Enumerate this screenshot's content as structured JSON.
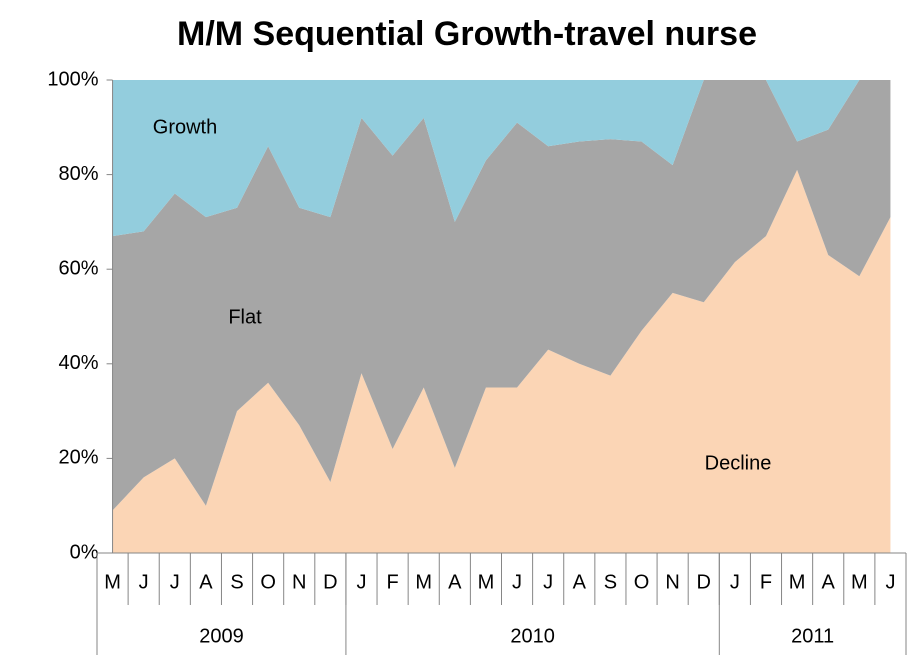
{
  "chart_data": {
    "type": "stacked_area",
    "title": "M/M Sequential Growth-travel nurse",
    "categories": [
      "M",
      "J",
      "J",
      "A",
      "S",
      "O",
      "N",
      "D",
      "J",
      "F",
      "M",
      "A",
      "M",
      "J",
      "J",
      "A",
      "S",
      "O",
      "N",
      "D",
      "J",
      "F",
      "M",
      "A",
      "M",
      "J"
    ],
    "year_groups": [
      {
        "label": "2009",
        "span": 8
      },
      {
        "label": "2010",
        "span": 12
      },
      {
        "label": "2011",
        "span": 6
      }
    ],
    "series": [
      {
        "name": "Growth",
        "color": "#fbd5b5",
        "values": [
          9,
          16,
          20,
          10,
          30,
          36,
          27,
          15,
          38,
          22,
          35,
          18,
          35,
          35,
          43,
          40,
          37.5,
          47,
          55,
          53,
          61.5,
          67,
          81,
          63,
          58.5,
          71
        ]
      },
      {
        "name": "Flat",
        "color": "#a6a6a6",
        "values": [
          58,
          52,
          56,
          61,
          43,
          50,
          46,
          56,
          54,
          62,
          57,
          52,
          48,
          56,
          43,
          47,
          50,
          40,
          27,
          47,
          38.5,
          33,
          6,
          26.5,
          41.5,
          29
        ]
      },
      {
        "name": "Decline",
        "color": "#93cddd",
        "values": [
          33,
          32,
          24,
          29,
          27,
          14,
          27,
          29,
          8,
          16,
          8,
          30,
          17,
          9,
          14,
          13,
          12.5,
          13,
          18,
          0,
          0,
          0,
          13,
          10.5,
          0,
          0
        ]
      }
    ],
    "ylim": [
      0,
      100
    ],
    "yticks": [
      {
        "value": 0,
        "label": "0%"
      },
      {
        "value": 20,
        "label": "20%"
      },
      {
        "value": 40,
        "label": "40%"
      },
      {
        "value": 60,
        "label": "60%"
      },
      {
        "value": 80,
        "label": "80%"
      },
      {
        "value": 100,
        "label": "100%"
      }
    ]
  }
}
